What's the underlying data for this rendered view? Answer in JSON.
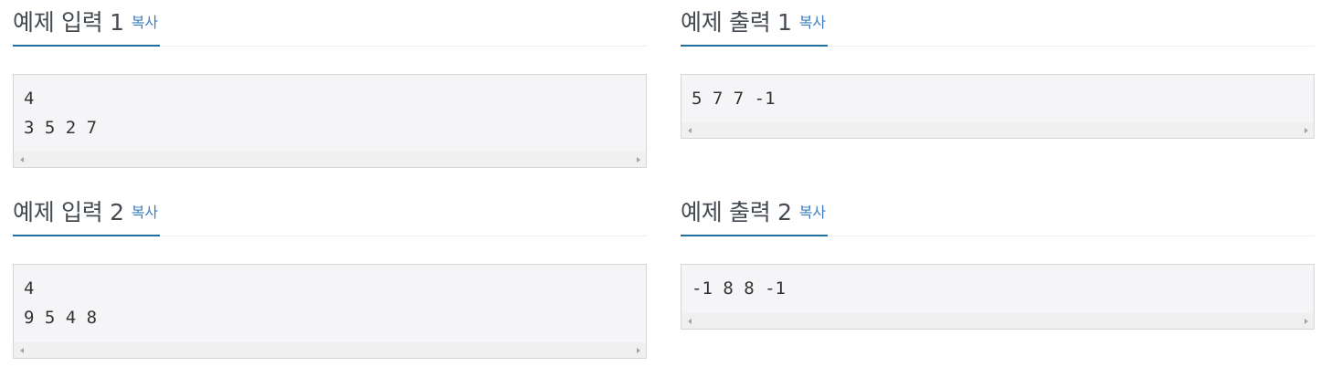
{
  "samples": {
    "input1": {
      "title": "예제 입력 1",
      "copy_label": "복사",
      "lines": [
        "4",
        "3 5 2 7"
      ]
    },
    "output1": {
      "title": "예제 출력 1",
      "copy_label": "복사",
      "lines": [
        "5 7 7 -1"
      ]
    },
    "input2": {
      "title": "예제 입력 2",
      "copy_label": "복사",
      "lines": [
        "4",
        "9 5 4 8"
      ]
    },
    "output2": {
      "title": "예제 출력 2",
      "copy_label": "복사",
      "lines": [
        "-1 8 8 -1"
      ]
    }
  },
  "colors": {
    "title_text": "#444a51",
    "copy_link": "#3f7fbf",
    "headline_underline": "#1f6f9f",
    "code_background": "#f5f5f7",
    "code_border": "#d6d6d6",
    "scrollbar_track": "#f0f0f0"
  },
  "icons": {
    "scroll_left": "triangle-left",
    "scroll_right": "triangle-right"
  }
}
